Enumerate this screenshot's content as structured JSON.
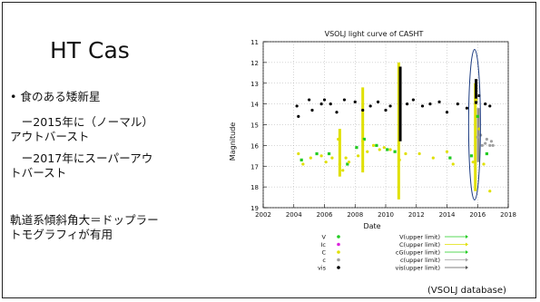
{
  "slide": {
    "title": "HT Cas",
    "bullets": [
      "• 食のある矮新星",
      "　ー2015年に（ノーマル）",
      "アウトバースト",
      "　ー2017年にスーパーアウ",
      "トバースト",
      "軌道系傾斜角大＝ドップラー",
      "トモグラフィが有用"
    ],
    "source": "(VSOLJ database)"
  },
  "chart_data": {
    "type": "scatter",
    "title": "VSOLJ light curve of CASHT",
    "xlabel": "Date",
    "ylabel": "Magnitude",
    "xlim": [
      2002,
      2018
    ],
    "ylim": [
      19,
      11
    ],
    "xticks": [
      "2002",
      "2004",
      "2006",
      "2008",
      "2010",
      "2012",
      "2014",
      "2016",
      "2018"
    ],
    "yticks": [
      "11",
      "12",
      "13",
      "14",
      "15",
      "16",
      "17",
      "18",
      "19"
    ],
    "grid": true,
    "series": [
      {
        "name": "V",
        "color": "#22cc22",
        "marker": "square",
        "points": [
          [
            2004.5,
            16.7
          ],
          [
            2005.5,
            16.4
          ],
          [
            2006.3,
            16.4
          ],
          [
            2007.5,
            16.9
          ],
          [
            2008.1,
            16.1
          ],
          [
            2008.6,
            15.7
          ],
          [
            2009.4,
            16.0
          ],
          [
            2010.1,
            16.2
          ],
          [
            2010.6,
            16.3
          ],
          [
            2014.2,
            16.6
          ],
          [
            2015.6,
            16.5
          ],
          [
            2016.0,
            14.6
          ],
          [
            2016.6,
            16.4
          ]
        ]
      },
      {
        "name": "C",
        "color": "#e0e000",
        "marker": "dot",
        "points": [
          [
            2004.3,
            16.4
          ],
          [
            2004.6,
            16.9
          ],
          [
            2005.1,
            16.6
          ],
          [
            2005.8,
            16.5
          ],
          [
            2006.1,
            16.8
          ],
          [
            2006.5,
            16.6
          ],
          [
            2006.9,
            15.7
          ],
          [
            2007.0,
            16.9
          ],
          [
            2007.2,
            17.2
          ],
          [
            2007.4,
            16.6
          ],
          [
            2007.6,
            16.8
          ],
          [
            2008.2,
            16.5
          ],
          [
            2008.5,
            15.8
          ],
          [
            2008.8,
            16.3
          ],
          [
            2009.2,
            16.0
          ],
          [
            2009.6,
            16.2
          ],
          [
            2009.9,
            16.1
          ],
          [
            2010.3,
            16.2
          ],
          [
            2010.9,
            16.7
          ],
          [
            2011.3,
            16.4
          ],
          [
            2012.2,
            16.4
          ],
          [
            2013.1,
            16.6
          ],
          [
            2014.0,
            16.3
          ],
          [
            2014.4,
            16.9
          ],
          [
            2015.7,
            16.8
          ],
          [
            2015.9,
            13.8
          ],
          [
            2016.1,
            15.2
          ],
          [
            2016.4,
            16.9
          ],
          [
            2016.8,
            18.2
          ]
        ]
      },
      {
        "name": "vis",
        "color": "#000000",
        "marker": "dot",
        "points": [
          [
            2004.2,
            14.1
          ],
          [
            2004.3,
            14.6
          ],
          [
            2005.0,
            13.8
          ],
          [
            2005.2,
            14.3
          ],
          [
            2005.8,
            14.0
          ],
          [
            2006.0,
            13.8
          ],
          [
            2006.4,
            14.0
          ],
          [
            2006.8,
            14.4
          ],
          [
            2007.3,
            13.8
          ],
          [
            2008.0,
            13.9
          ],
          [
            2008.5,
            14.3
          ],
          [
            2009.0,
            14.1
          ],
          [
            2009.5,
            13.9
          ],
          [
            2010.0,
            14.3
          ],
          [
            2010.3,
            14.1
          ],
          [
            2011.4,
            14.0
          ],
          [
            2011.8,
            13.8
          ],
          [
            2012.4,
            14.1
          ],
          [
            2012.9,
            14.0
          ],
          [
            2013.5,
            13.9
          ],
          [
            2014.0,
            14.4
          ],
          [
            2014.7,
            14.0
          ],
          [
            2015.3,
            14.2
          ],
          [
            2016.1,
            13.6
          ],
          [
            2016.5,
            14.0
          ],
          [
            2016.8,
            14.1
          ]
        ]
      },
      {
        "name": "c",
        "color": "#a0a0a0",
        "marker": "dot",
        "points": [
          [
            2016.0,
            15.6
          ],
          [
            2016.2,
            15.5
          ],
          [
            2016.3,
            16.0
          ],
          [
            2016.5,
            15.9
          ],
          [
            2016.6,
            15.7
          ],
          [
            2016.8,
            16.0
          ],
          [
            2016.9,
            15.8
          ],
          [
            2017.0,
            16.0
          ]
        ]
      }
    ],
    "bars": [
      {
        "x": 2007.0,
        "y": [
          15.2,
          17.5
        ],
        "color": "#e0e000"
      },
      {
        "x": 2008.5,
        "y": [
          13.2,
          17.3
        ],
        "color": "#e0e000"
      },
      {
        "x": 2010.85,
        "y": [
          12.0,
          18.6
        ],
        "color": "#e0e000"
      },
      {
        "x": 2010.95,
        "y": [
          12.2,
          15.8
        ],
        "color": "#000000"
      },
      {
        "x": 2015.85,
        "y": [
          13.0,
          18.2
        ],
        "color": "#e0e000"
      },
      {
        "x": 2015.9,
        "y": [
          12.8,
          14.0
        ],
        "color": "#000000"
      },
      {
        "x": 2016.05,
        "y": [
          14.2,
          16.8
        ],
        "color": "#909090"
      }
    ],
    "highlight_ellipse": {
      "x": 2015.8,
      "y": 15.0
    },
    "legend": {
      "placement": "bottom",
      "left": [
        {
          "label": "V",
          "color": "#22cc22"
        },
        {
          "label": "Ic",
          "color": "#dd22dd"
        },
        {
          "label": "C",
          "color": "#e0e000"
        },
        {
          "label": "c",
          "color": "#a0a0a0"
        },
        {
          "label": "vis",
          "color": "#000000"
        }
      ],
      "right": [
        {
          "label": "V(upper limit)",
          "color": "#22cc22"
        },
        {
          "label": "C(upper limit)",
          "color": "#e0e000"
        },
        {
          "label": "cG(upper limit)",
          "color": "#22cc22"
        },
        {
          "label": "c(upper limit)",
          "color": "#a0a0a0"
        },
        {
          "label": "vis(upper limit)",
          "color": "#555555"
        }
      ]
    }
  }
}
